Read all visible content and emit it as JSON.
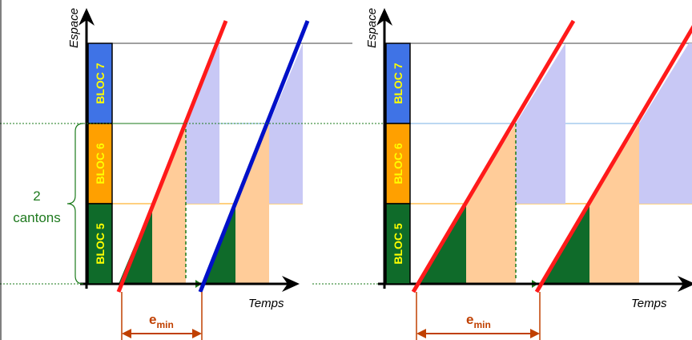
{
  "axes": {
    "y_label": "Espace",
    "x_label": "Temps"
  },
  "blocks": [
    {
      "label": "BLOC 7",
      "color": "#3f73e6"
    },
    {
      "label": "BLOC 6",
      "color": "#ffa000"
    },
    {
      "label": "BLOC 5",
      "color": "#0f6b2a"
    }
  ],
  "cantons_annotation": {
    "number": "2",
    "text": "cantons"
  },
  "emin": {
    "letter": "e",
    "subscript": "min"
  },
  "colors": {
    "train_red": "#ff1a1a",
    "train_blue": "#0010c8",
    "occupation_green": "#0f6b2a",
    "occupation_orange": "#ffcc99",
    "occupation_blue": "#c8c8f5",
    "dashed_green": "#1a7a1a",
    "emin_arrow": "#c04000"
  }
}
